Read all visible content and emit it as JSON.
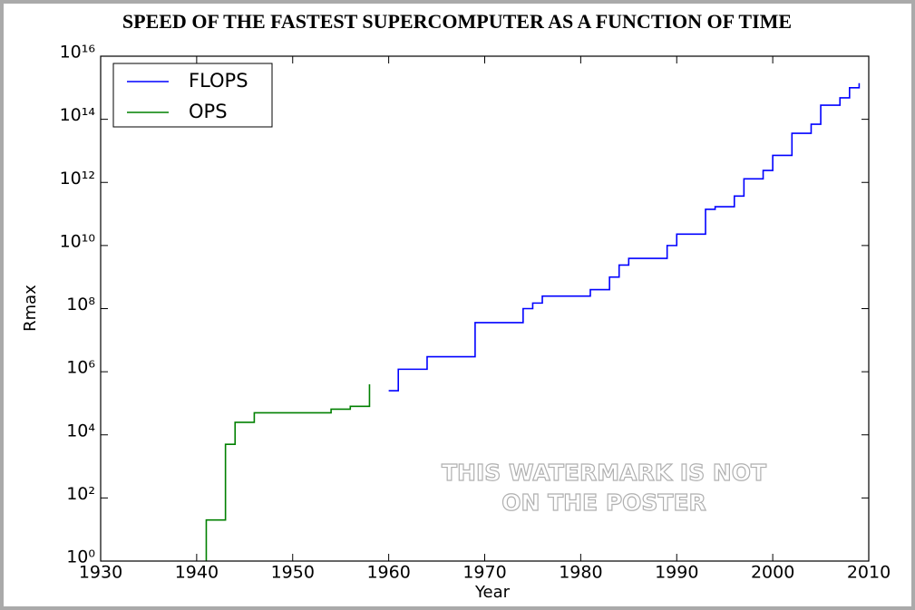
{
  "chart_data": {
    "type": "line",
    "step": "post",
    "title": "SPEED OF THE FASTEST SUPERCOMPUTER AS A FUNCTION OF TIME",
    "xlabel": "Year",
    "ylabel": "Rmax",
    "log_y": true,
    "legend": "upper left",
    "xlim": [
      1930,
      2010
    ],
    "xticks": [
      1930,
      1940,
      1950,
      1960,
      1970,
      1980,
      1990,
      2000,
      2010
    ],
    "ylim": [
      1,
      1e+16
    ],
    "yticks": [
      {
        "value": 1,
        "label": "10⁰"
      },
      {
        "value": 100,
        "label": "10²"
      },
      {
        "value": 10000,
        "label": "10⁴"
      },
      {
        "value": 1000000,
        "label": "10⁶"
      },
      {
        "value": 100000000,
        "label": "10⁸"
      },
      {
        "value": 10000000000,
        "label": "10¹⁰"
      },
      {
        "value": 1000000000000,
        "label": "10¹²"
      },
      {
        "value": 100000000000000,
        "label": "10¹⁴"
      },
      {
        "value": 10000000000000000,
        "label": "10¹⁶"
      }
    ],
    "series": [
      {
        "name": "FLOPS",
        "color": "#0000ff",
        "x": [
          1960,
          1961,
          1964,
          1969,
          1974,
          1975,
          1976,
          1981,
          1983,
          1984,
          1985,
          1989,
          1990,
          1993,
          1994,
          1996,
          1997,
          1999,
          2000,
          2002,
          2004,
          2005,
          2007,
          2008,
          2009
        ],
        "values": [
          250000,
          1200000,
          3000000,
          36000000,
          100000000,
          150000000,
          250000000,
          400000000,
          1000000000,
          2400000000,
          3900000000,
          10000000000,
          23000000000,
          140000000000,
          170000000000,
          370000000000,
          1300000000000,
          2400000000000,
          7200000000000,
          36000000000000,
          70000000000000,
          280000000000000,
          480000000000000,
          1000000000000000,
          1400000000000000
        ]
      },
      {
        "name": "OPS",
        "color": "#008000",
        "x": [
          1941,
          1941,
          1943,
          1944,
          1946,
          1954,
          1956,
          1958
        ],
        "values": [
          1,
          20,
          5000,
          25000,
          50000,
          65000,
          80000,
          400000
        ]
      }
    ],
    "annotations": [
      "THIS WATERMARK IS NOT",
      "ON THE POSTER"
    ]
  }
}
